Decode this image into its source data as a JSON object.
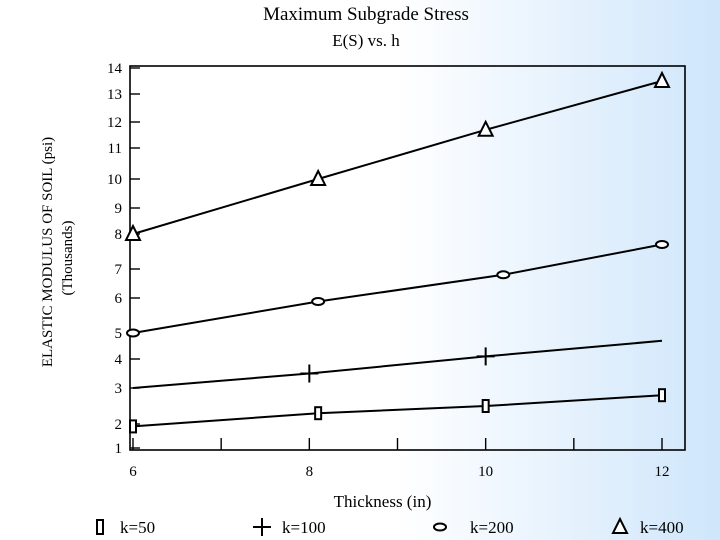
{
  "chart_data": {
    "type": "line",
    "title": "Maximum Subgrade Stress",
    "subtitle": "E(S) vs. h",
    "xlabel": "Thickness (in)",
    "ylabel_line1": "ELASTIC MODULUS OF SOIL (psi)",
    "ylabel_line2": "(Thousands)",
    "x_ticks": [
      "6",
      "8",
      "10",
      "12"
    ],
    "y_ticks": [
      "1",
      "2",
      "3",
      "4",
      "5",
      "6",
      "7",
      "8",
      "9",
      "10",
      "11",
      "12",
      "13",
      "14"
    ],
    "xlim": [
      6,
      12
    ],
    "ylim": [
      1,
      14
    ],
    "y_scale": "irregular (tick labels unevenly spaced)",
    "grid": false,
    "legend_position": "bottom",
    "series": [
      {
        "name": "k=50",
        "marker": "square",
        "points": [
          [
            6,
            1.9
          ],
          [
            8.1,
            2.3
          ],
          [
            10,
            2.5
          ],
          [
            12,
            2.8
          ]
        ]
      },
      {
        "name": "k=100",
        "marker": "plus",
        "points": [
          [
            6,
            3.0
          ],
          [
            8,
            3.5
          ],
          [
            10,
            4.1
          ],
          [
            12,
            4.7
          ]
        ]
      },
      {
        "name": "k=200",
        "marker": "diamond",
        "points": [
          [
            6,
            5.0
          ],
          [
            8.1,
            5.9
          ],
          [
            10.2,
            6.8
          ],
          [
            12,
            7.7
          ]
        ]
      },
      {
        "name": "k=400",
        "marker": "triangle",
        "points": [
          [
            6,
            8.0
          ],
          [
            8.1,
            10.0
          ],
          [
            10,
            11.7
          ],
          [
            12,
            13.5
          ]
        ]
      }
    ]
  }
}
